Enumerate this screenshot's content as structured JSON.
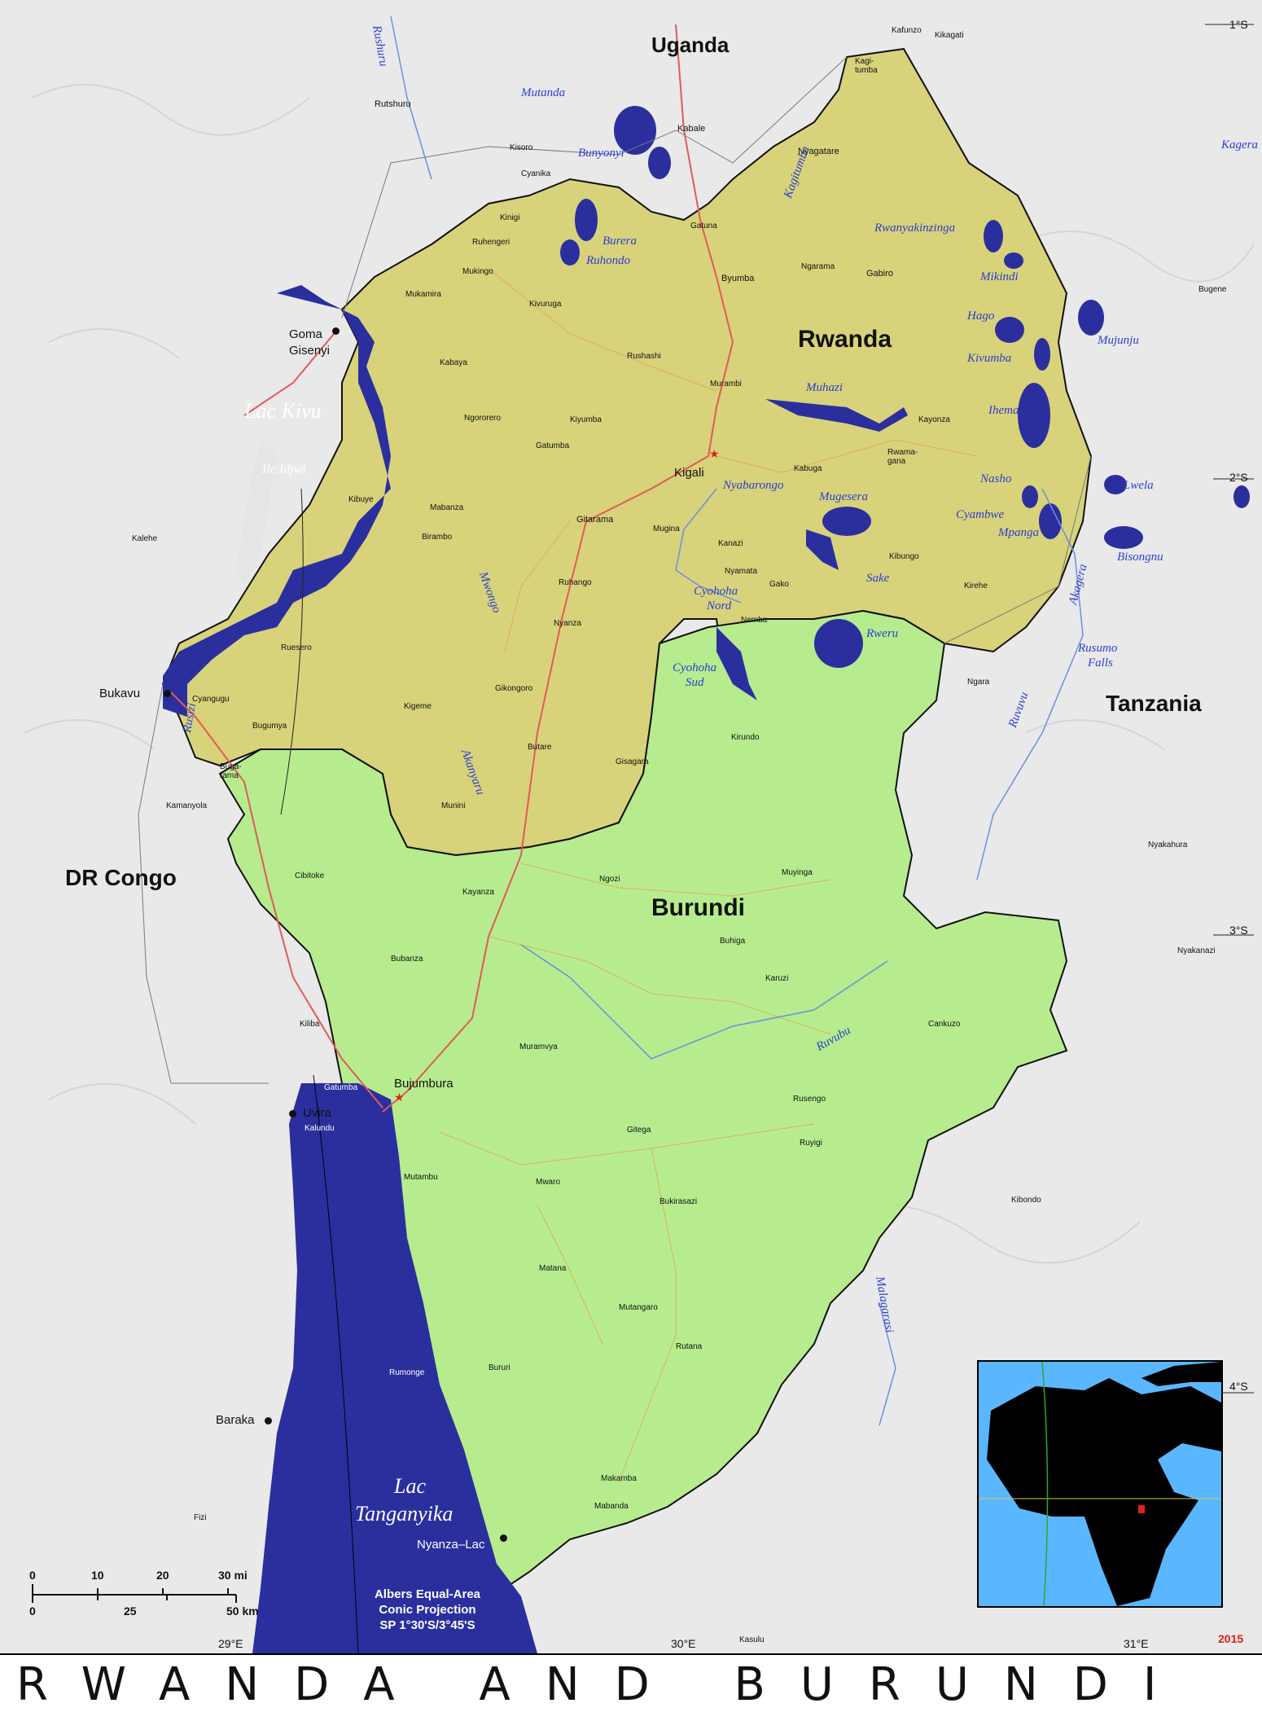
{
  "title": "RWANDA AND BURUNDI",
  "year": "2015",
  "projection": [
    "Albers Equal-Area",
    "Conic Projection",
    "SP 1°30'S/3°45'S"
  ],
  "countries": {
    "uganda": "Uganda",
    "rwanda": "Rwanda",
    "burundi": "Burundi",
    "tanzania": "Tanzania",
    "drc": "DR Congo"
  },
  "colors": {
    "rwanda": "#d8d27a",
    "burundi": "#b6ec8e",
    "water": "#2b2f9e",
    "capital": "#e0201a"
  },
  "capitals": {
    "kigali": "Kigali",
    "bujumbura": "Bujumbura"
  },
  "major_cities": {
    "goma": "Goma",
    "gisenyi": "Gisenyi",
    "bukavu": "Bukavu",
    "uvira": "Uvira",
    "baraka": "Baraka",
    "nyanza_lac": "Nyanza–Lac"
  },
  "cities": {
    "rutshuru": "Rutshuru",
    "kafunzo": "Kafunzo",
    "kikagati": "Kikagati",
    "kagitumba": "Kagi-tumba",
    "kabale": "Kabale",
    "kisoro": "Kisoro",
    "cyanika": "Cyanika",
    "nyagatare": "Nyagatare",
    "gatuna": "Gatuna",
    "kinigi": "Kinigi",
    "ruhengeri": "Ruhengeri",
    "mukingo": "Mukingo",
    "mukamira": "Mukamira",
    "kivuruga": "Kivuruga",
    "byumba": "Byumba",
    "ngarama": "Ngarama",
    "gabiro": "Gabiro",
    "bugene": "Bugene",
    "kabaya": "Kabaya",
    "rushashi": "Rushashi",
    "murambi": "Murambi",
    "ngororero": "Ngororero",
    "kiyumba": "Kiyumba",
    "gatumba": "Gatumba",
    "kayonza": "Kayonza",
    "rwamagana": "Rwama-gana",
    "kabuga": "Kabuga",
    "kibuye": "Kibuye",
    "mabanza": "Mabanza",
    "gitarama": "Gitarama",
    "mugina": "Mugina",
    "kalehe": "Kalehe",
    "birambo": "Birambo",
    "kanazi": "Kanazi",
    "kibungo": "Kibungo",
    "ruhango": "Ruhango",
    "nyamata": "Nyamata",
    "gako": "Gako",
    "kirehe": "Kirehe",
    "nyanza": "Nyanza",
    "nemba": "Nemba",
    "ruesero": "Ruesero",
    "cyangugu": "Cyangugu",
    "gikongoro": "Gikongoro",
    "kigeme": "Kigeme",
    "ngara": "Ngara",
    "bugumya": "Bugumya",
    "kirundo": "Kirundo",
    "butare": "Butare",
    "gisagara": "Gisagara",
    "bugarama": "Buga-rama",
    "kamanyola": "Kamanyola",
    "munini": "Munini",
    "nyakahura": "Nyakahura",
    "cibitoke": "Cibitoke",
    "kayanza": "Kayanza",
    "ngozi": "Ngozi",
    "muyinga": "Muyinga",
    "buhiga": "Buhiga",
    "bubanza": "Bubanza",
    "karuzi": "Karuzi",
    "nyakanazi": "Nyakanazi",
    "kiliba": "Kiliba",
    "cankuzo": "Cankuzo",
    "muramvya": "Muramvya",
    "gatumba_bi": "Gatumba",
    "rusengo": "Rusengo",
    "kalundu": "Kalundu",
    "gitega": "Gitega",
    "ruyigi": "Ruyigi",
    "mutambu": "Mutambu",
    "mwaro": "Mwaro",
    "kibondo": "Kibondo",
    "bukirasazi": "Bukirasazi",
    "matana": "Matana",
    "mutangaro": "Mutangaro",
    "rutana": "Rutana",
    "rumonge": "Rumonge",
    "bururi": "Bururi",
    "makamba": "Makamba",
    "mabanda": "Mabanda",
    "fizi": "Fizi",
    "kasulu": "Kasulu"
  },
  "water": {
    "lac_kivu": "Lac Kivu",
    "ile_idjwi": "Ile Idjwi",
    "lac_tanganyika_1": "Lac",
    "lac_tanganyika_2": "Tanganyika",
    "mutanda": "Mutanda",
    "bunyonyi": "Bunyonyi",
    "burera": "Burera",
    "ruhondo": "Ruhondo",
    "kagitumba": "Kagitumba",
    "kagera": "Kagera",
    "rwanyakinzinga": "Rwanyakinzinga",
    "mikindi": "Mikindi",
    "hago": "Hago",
    "mujunju": "Mujunju",
    "kivumba": "Kivumba",
    "muhazi": "Muhazi",
    "ihema": "Ihema",
    "nasho": "Nasho",
    "lwela": "Lwela",
    "nyabarongo": "Nyabarongo",
    "mugesera": "Mugesera",
    "cyambwe": "Cyambwe",
    "mpanga": "Mpanga",
    "bisongnu": "Bisongnu",
    "sake": "Sake",
    "akagera": "Akagera",
    "cyohoha_nord_1": "Cyohoha",
    "cyohoha_nord_2": "Nord",
    "rweru": "Rweru",
    "cyohoha_sud_1": "Cyohoha",
    "cyohoha_sud_2": "Sud",
    "rusumo_1": "Rusumo",
    "rusumo_2": "Falls",
    "mwongo": "Mwongo",
    "ruvuvu": "Ruvuvu",
    "akanyaru": "Akanyaru",
    "rusizi": "Rusizi",
    "ruvubu": "Ruvubu",
    "malagarasi": "Malagarasi",
    "rushuru": "Rushuru"
  },
  "graticule": {
    "lat_1": "1°S",
    "lat_2": "2°S",
    "lat_3": "3°S",
    "lat_4": "4°S",
    "lon_29": "29°E",
    "lon_30": "30°E",
    "lon_31": "31°E"
  },
  "scale": {
    "mi_ticks": [
      "0",
      "10",
      "20",
      "30 mi"
    ],
    "km_ticks": [
      "0",
      "25",
      "50 km"
    ]
  }
}
